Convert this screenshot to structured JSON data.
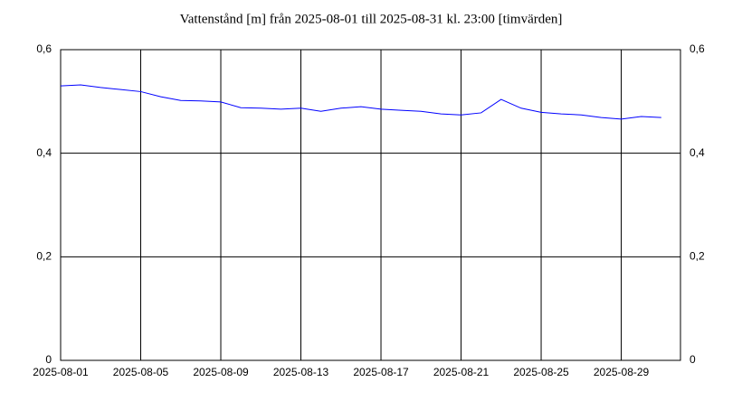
{
  "chart_data": {
    "type": "line",
    "title": "Vattenstånd [m] från 2025-08-01 till 2025-08-31 kl. 23:00 [timvärden]",
    "x": [
      "2025-08-01",
      "2025-08-02",
      "2025-08-03",
      "2025-08-04",
      "2025-08-05",
      "2025-08-06",
      "2025-08-07",
      "2025-08-08",
      "2025-08-09",
      "2025-08-10",
      "2025-08-11",
      "2025-08-12",
      "2025-08-13",
      "2025-08-14",
      "2025-08-15",
      "2025-08-16",
      "2025-08-17",
      "2025-08-18",
      "2025-08-19",
      "2025-08-20",
      "2025-08-21",
      "2025-08-22",
      "2025-08-23",
      "2025-08-24",
      "2025-08-25",
      "2025-08-26",
      "2025-08-27",
      "2025-08-28",
      "2025-08-29",
      "2025-08-30",
      "2025-08-31"
    ],
    "series": [
      {
        "color": "#0000ff",
        "values": [
          0.53,
          0.532,
          0.527,
          0.523,
          0.519,
          0.509,
          0.502,
          0.501,
          0.499,
          0.488,
          0.487,
          0.485,
          0.487,
          0.481,
          0.487,
          0.49,
          0.485,
          0.483,
          0.481,
          0.476,
          0.474,
          0.478,
          0.504,
          0.487,
          0.479,
          0.476,
          0.474,
          0.469,
          0.466,
          0.471,
          0.469
        ]
      }
    ],
    "xlim": [
      "2025-08-01",
      "2025-08-31 23:00"
    ],
    "xticks": [
      "2025-08-01",
      "2025-08-05",
      "2025-08-09",
      "2025-08-13",
      "2025-08-17",
      "2025-08-21",
      "2025-08-25",
      "2025-08-29"
    ],
    "ylim": [
      0,
      0.6
    ],
    "yticks": [
      0,
      {
        "value": 0.2,
        "label": "0,2"
      },
      {
        "value": 0.4,
        "label": "0,4"
      },
      {
        "value": 0.6,
        "label": "0,6"
      }
    ],
    "grid": true,
    "mirror_y_axis": true
  }
}
